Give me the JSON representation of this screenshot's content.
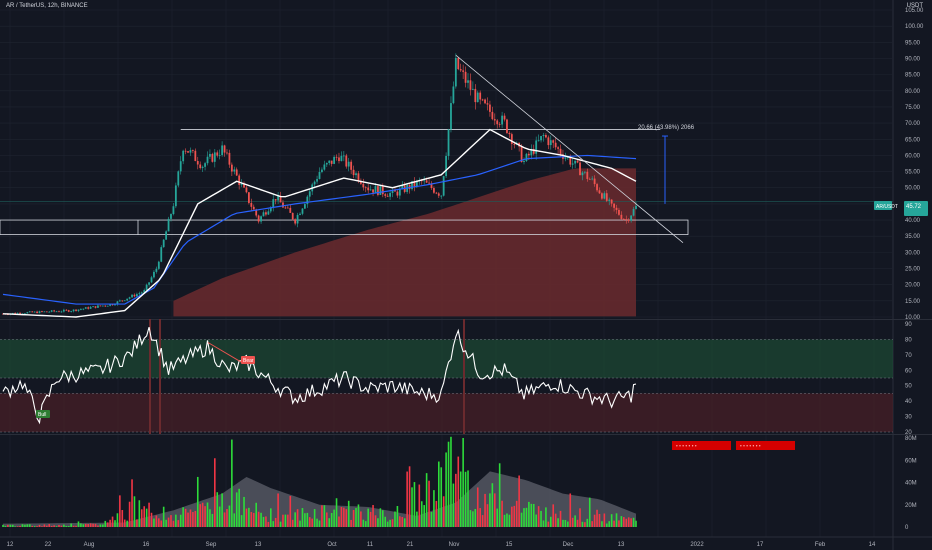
{
  "header": {
    "symbol": "AR / TetherUS, 12h, BINANCE",
    "currency": "USDT"
  },
  "colors": {
    "bg": "#131722",
    "grid": "#1f2430",
    "up": "#26a69a",
    "down": "#ef5350",
    "ma_white": "#ffffff",
    "ma_blue": "#2962ff",
    "ma_red_fill": "#6b2a2e",
    "rsi_line": "#ffffff",
    "rsi_upper_band": "#1d4a33",
    "rsi_lower_band": "#4a1f26",
    "vol_up": "#2ddc3a",
    "vol_down": "#f23645",
    "vol_ma_fill": "#5d606b",
    "projection": "#2962ff",
    "price_tag": "#26a69a"
  },
  "price_axis": {
    "ticks": [
      "105.00",
      "100.00",
      "95.00",
      "90.00",
      "85.00",
      "80.00",
      "75.00",
      "70.00",
      "65.00",
      "60.00",
      "55.00",
      "50.00",
      "45.00",
      "40.00",
      "35.00",
      "30.00",
      "25.00",
      "20.00",
      "15.00",
      "10.00"
    ]
  },
  "rsi_axis": {
    "ticks": [
      "90",
      "80",
      "70",
      "60",
      "50",
      "40",
      "30",
      "20"
    ]
  },
  "volume_axis": {
    "ticks": [
      "80M",
      "60M",
      "40M",
      "20M",
      "0"
    ]
  },
  "time_axis": {
    "ticks": [
      "12",
      "22",
      "Aug",
      "16",
      "Sep",
      "13",
      "Oct",
      "11",
      "21",
      "Nov",
      "15",
      "Dec",
      "13",
      "2022",
      "17",
      "Feb",
      "14"
    ]
  },
  "labels": {
    "projection_text": "20.66 (43.98%) 2066",
    "last_price": "AR/USDT",
    "last_price_value": "45.72",
    "bull": "Bull",
    "bear": "Bear",
    "red_badge_1": "• • • • • • •",
    "red_badge_2": "• • • • • • •"
  },
  "chart_data": {
    "type": "candlestick",
    "price_ylim": [
      10,
      105
    ],
    "rsi_ylim": [
      20,
      90
    ],
    "volume_ylim": [
      0,
      80
    ],
    "rsi_levels": [
      80,
      55,
      45,
      20
    ],
    "horizontal_levels": [
      68,
      40,
      35.5
    ],
    "trendline": {
      "from_price": 91,
      "to_price": 33
    },
    "projection": {
      "from_price": 45,
      "to_price": 66
    },
    "price_anchors": [
      [
        0,
        11
      ],
      [
        28,
        12
      ],
      [
        45,
        14
      ],
      [
        58,
        18
      ],
      [
        63,
        25
      ],
      [
        70,
        45
      ],
      [
        74,
        63
      ],
      [
        82,
        57
      ],
      [
        90,
        62
      ],
      [
        97,
        52
      ],
      [
        105,
        40
      ],
      [
        112,
        47
      ],
      [
        120,
        40
      ],
      [
        130,
        55
      ],
      [
        138,
        60
      ],
      [
        150,
        50
      ],
      [
        160,
        48
      ],
      [
        172,
        52
      ],
      [
        176,
        50
      ],
      [
        180,
        48
      ],
      [
        186,
        88
      ],
      [
        196,
        76
      ],
      [
        206,
        70
      ],
      [
        214,
        58
      ],
      [
        222,
        66
      ],
      [
        232,
        59
      ],
      [
        242,
        52
      ],
      [
        250,
        44
      ],
      [
        256,
        40
      ],
      [
        260,
        44
      ]
    ],
    "ma_white": [
      [
        0,
        11
      ],
      [
        30,
        10
      ],
      [
        50,
        12
      ],
      [
        65,
        22
      ],
      [
        80,
        45
      ],
      [
        96,
        52
      ],
      [
        115,
        47
      ],
      [
        140,
        53
      ],
      [
        160,
        50
      ],
      [
        180,
        54
      ],
      [
        200,
        68
      ],
      [
        215,
        62
      ],
      [
        230,
        60
      ],
      [
        250,
        56
      ],
      [
        260,
        52
      ]
    ],
    "ma_blue": [
      [
        0,
        17
      ],
      [
        30,
        14
      ],
      [
        50,
        14
      ],
      [
        62,
        19
      ],
      [
        75,
        33
      ],
      [
        95,
        42
      ],
      [
        120,
        45
      ],
      [
        150,
        48
      ],
      [
        175,
        51
      ],
      [
        195,
        54
      ],
      [
        215,
        59
      ],
      [
        240,
        60
      ],
      [
        260,
        59
      ]
    ],
    "ma_red": [
      [
        70,
        15
      ],
      [
        90,
        22
      ],
      [
        120,
        30
      ],
      [
        150,
        37
      ],
      [
        175,
        42
      ],
      [
        195,
        47
      ],
      [
        215,
        52
      ],
      [
        235,
        56
      ],
      [
        260,
        56
      ]
    ],
    "rsi_anchors": [
      [
        0,
        45
      ],
      [
        8,
        52
      ],
      [
        15,
        30
      ],
      [
        22,
        55
      ],
      [
        40,
        60
      ],
      [
        52,
        70
      ],
      [
        60,
        88
      ],
      [
        68,
        60
      ],
      [
        76,
        68
      ],
      [
        84,
        75
      ],
      [
        92,
        60
      ],
      [
        100,
        65
      ],
      [
        112,
        50
      ],
      [
        120,
        42
      ],
      [
        130,
        48
      ],
      [
        140,
        55
      ],
      [
        150,
        48
      ],
      [
        160,
        50
      ],
      [
        172,
        45
      ],
      [
        180,
        44
      ],
      [
        186,
        85
      ],
      [
        196,
        58
      ],
      [
        206,
        60
      ],
      [
        214,
        44
      ],
      [
        226,
        52
      ],
      [
        240,
        44
      ],
      [
        250,
        40
      ],
      [
        258,
        44
      ],
      [
        260,
        52
      ]
    ],
    "volume_anchors": [
      [
        0,
        2
      ],
      [
        40,
        3
      ],
      [
        60,
        35
      ],
      [
        64,
        8
      ],
      [
        80,
        25
      ],
      [
        95,
        45
      ],
      [
        100,
        20
      ],
      [
        120,
        15
      ],
      [
        140,
        25
      ],
      [
        160,
        12
      ],
      [
        186,
        80
      ],
      [
        195,
        40
      ],
      [
        206,
        30
      ],
      [
        220,
        20
      ],
      [
        240,
        15
      ],
      [
        260,
        8
      ]
    ],
    "volume_ma": [
      [
        0,
        3
      ],
      [
        50,
        4
      ],
      [
        70,
        15
      ],
      [
        90,
        30
      ],
      [
        100,
        45
      ],
      [
        110,
        35
      ],
      [
        130,
        20
      ],
      [
        150,
        18
      ],
      [
        170,
        10
      ],
      [
        186,
        22
      ],
      [
        200,
        50
      ],
      [
        215,
        42
      ],
      [
        230,
        30
      ],
      [
        245,
        25
      ],
      [
        260,
        12
      ]
    ]
  }
}
